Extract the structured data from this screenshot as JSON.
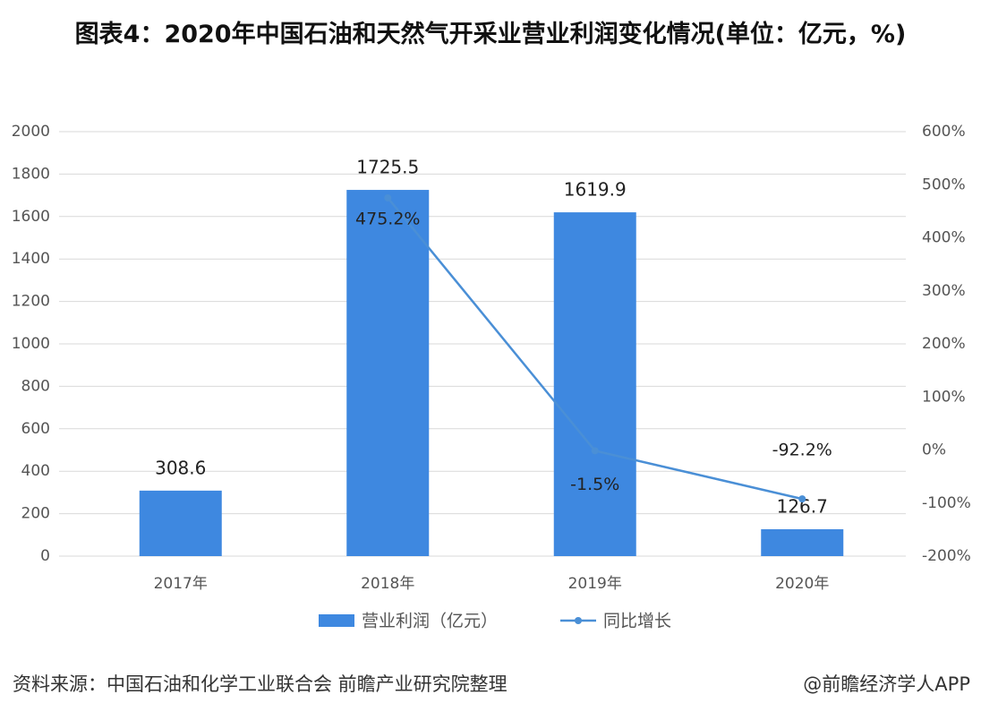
{
  "chart_data": {
    "type": "bar",
    "title": "图表4：2020年中国石油和天然气开采业营业利润变化情况(单位：亿元，%)",
    "categories": [
      "2017年",
      "2018年",
      "2019年",
      "2020年"
    ],
    "series": [
      {
        "name": "营业利润（亿元）",
        "color": "#3e88e0",
        "type": "bar",
        "values": [
          308.6,
          1725.5,
          1619.9,
          126.7
        ]
      },
      {
        "name": "同比增长",
        "color": "#4a8fd6",
        "type": "line",
        "axis": "y2",
        "values": [
          null,
          475.2,
          -1.5,
          -92.2
        ],
        "value_labels": [
          null,
          "475.2%",
          "-1.5%",
          "-92.2%"
        ]
      }
    ],
    "ylim": [
      0,
      2000
    ],
    "yticks": [
      0,
      200,
      400,
      600,
      800,
      1000,
      1200,
      1400,
      1600,
      1800,
      2000
    ],
    "y2lim": [
      -200,
      600
    ],
    "y2ticks": [
      {
        "value": -200,
        "label": "-200%"
      },
      {
        "value": -100,
        "label": "-100%"
      },
      {
        "value": 0,
        "label": "0%"
      },
      {
        "value": 100,
        "label": "100%"
      },
      {
        "value": 200,
        "label": "200%"
      },
      {
        "value": 300,
        "label": "300%"
      },
      {
        "value": 400,
        "label": "400%"
      },
      {
        "value": 500,
        "label": "500%"
      },
      {
        "value": 600,
        "label": "600%"
      }
    ],
    "grid": true,
    "legend": "bottom",
    "source": "资料来源：中国石油和化学工业联合会 前瞻产业研究院整理",
    "credit": "@前瞻经济学人APP"
  }
}
